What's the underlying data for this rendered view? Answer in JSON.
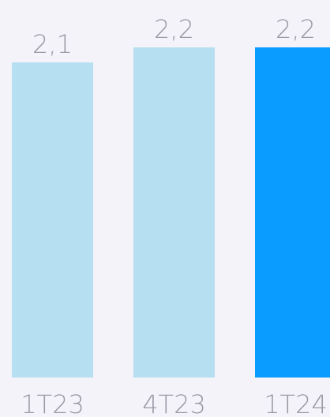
{
  "chart_data": {
    "type": "bar",
    "categories": [
      "1T23",
      "4T23",
      "1T24"
    ],
    "values": [
      2.1,
      2.2,
      2.2
    ],
    "value_labels": [
      "2,1",
      "2,2",
      "2,2"
    ],
    "title": "",
    "xlabel": "",
    "ylabel": "",
    "grid": false,
    "legend": "none",
    "colors": {
      "bar": "#b7dff2",
      "highlight": "#0a9cff",
      "text": "#9a9aa6",
      "background": "#f4f3f9"
    },
    "highlight_index": 2
  }
}
